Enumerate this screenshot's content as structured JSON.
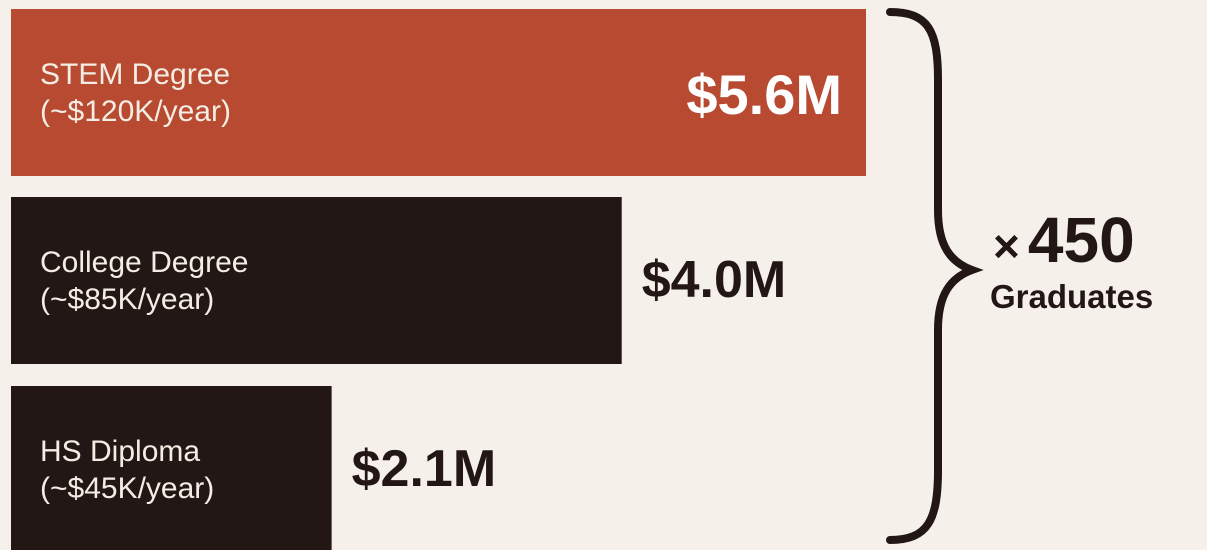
{
  "colors": {
    "background": "#f5f1ea",
    "highlight": "#b84a32",
    "dark": "#231715",
    "label_on_bar": "#f3ede3"
  },
  "chart_data": {
    "type": "bar",
    "orientation": "horizontal",
    "categories": [
      "STEM Degree",
      "College Degree",
      "HS Diploma"
    ],
    "sublabels": [
      "(~$120K/year)",
      "(~$85K/year)",
      "(~$45K/year)"
    ],
    "values": [
      5.6,
      4.0,
      2.1
    ],
    "value_labels": [
      "$5.6M",
      "$4.0M",
      "$2.1M"
    ],
    "bar_colors": [
      "#b84a32",
      "#231715",
      "#231715"
    ],
    "grid": false,
    "legend": "none",
    "annotation": {
      "symbol": "×",
      "multiplier": "450",
      "caption": "Graduates"
    }
  }
}
